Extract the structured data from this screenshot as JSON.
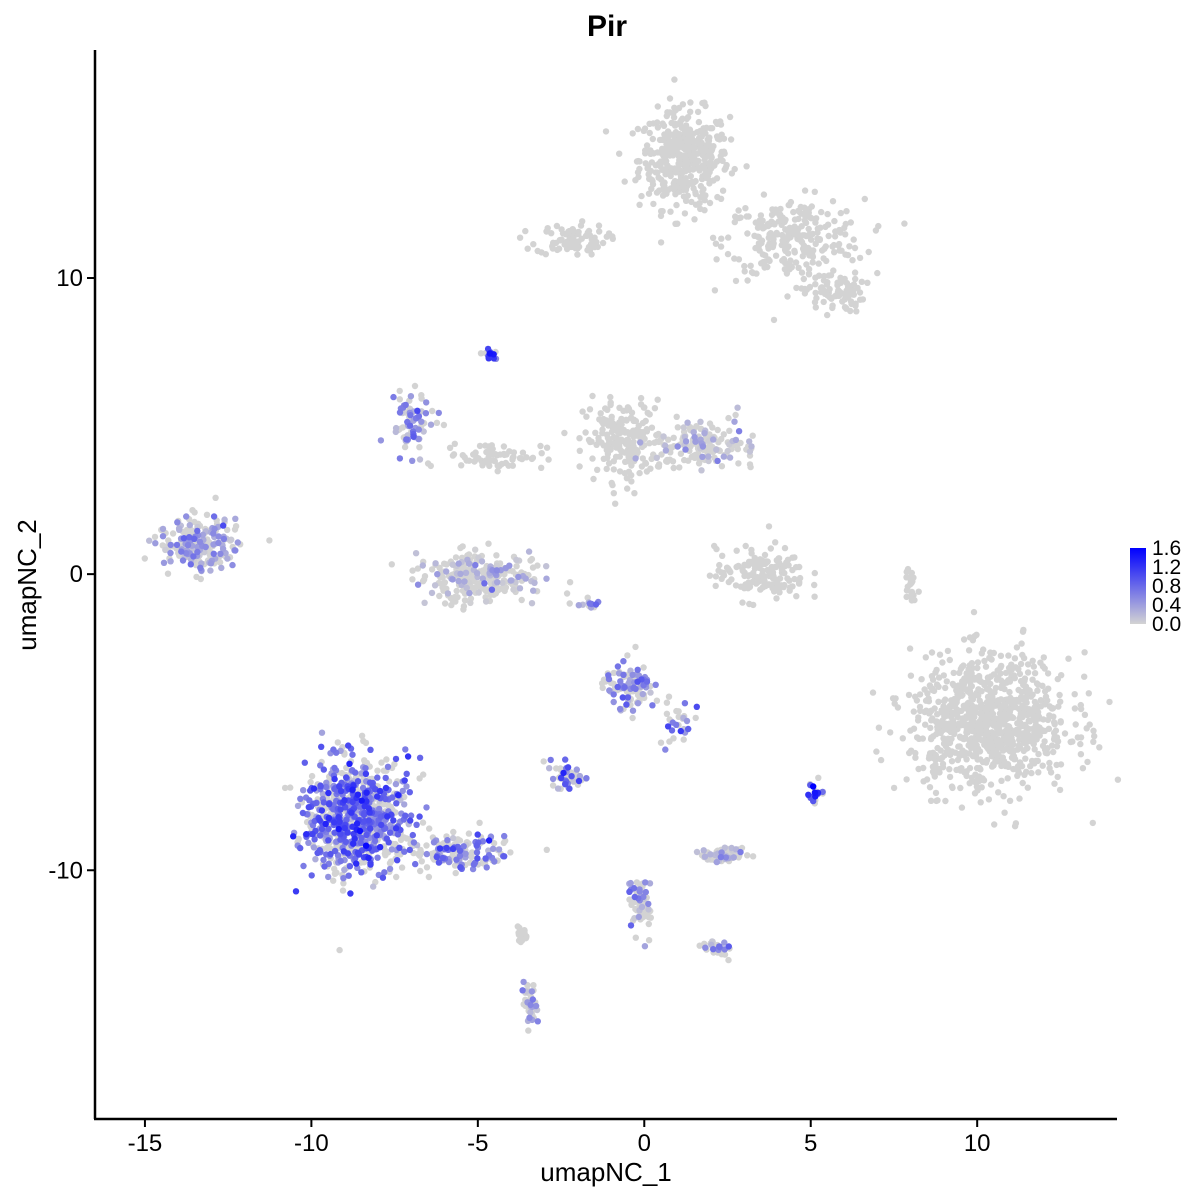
{
  "chart_data": {
    "type": "scatter",
    "title": "Pir",
    "xlabel": "umapNC_1",
    "ylabel": "umapNC_2",
    "xlim": [
      -16.5,
      14.2
    ],
    "ylim": [
      -18.4,
      17.7
    ],
    "xticks": [
      -15,
      -10,
      -5,
      0,
      5,
      10
    ],
    "xtick_labels": [
      "-15",
      "-10",
      "-5",
      "0",
      "5",
      "10"
    ],
    "yticks": [
      -10,
      0,
      10
    ],
    "ytick_labels": [
      "-10",
      "0",
      "10"
    ],
    "grid": false,
    "legend": {
      "position": "right",
      "ticks": [
        "0.0",
        "0.4",
        "0.8",
        "1.2",
        "1.6"
      ],
      "range": [
        0,
        1.6
      ],
      "color_low": "#d3d3d3",
      "color_high": "#0000ff"
    },
    "point_color_low": "#d3d3d3",
    "point_color_high": "#0000ff",
    "clusters": [
      {
        "cx": 1.2,
        "cy": 14.0,
        "sx": 0.9,
        "sy": 1.1,
        "n": 420,
        "expr": 0
      },
      {
        "cx": 4.5,
        "cy": 11.3,
        "sx": 1.4,
        "sy": 0.9,
        "n": 260,
        "expr": 0
      },
      {
        "cx": -2.2,
        "cy": 11.3,
        "sx": 0.7,
        "sy": 0.35,
        "n": 90,
        "expr": 0
      },
      {
        "cx": 5.7,
        "cy": 9.5,
        "sx": 0.6,
        "sy": 0.45,
        "n": 80,
        "expr": 0
      },
      {
        "cx": -0.6,
        "cy": 4.5,
        "sx": 0.8,
        "sy": 0.9,
        "n": 200,
        "expr": 0
      },
      {
        "cx": 1.8,
        "cy": 4.4,
        "sx": 1.1,
        "sy": 0.5,
        "n": 160,
        "expr": 0.02
      },
      {
        "cx": -7.0,
        "cy": 5.0,
        "sx": 0.5,
        "sy": 0.7,
        "n": 70,
        "expr": 0.5
      },
      {
        "cx": -4.5,
        "cy": 4.0,
        "sx": 1.0,
        "sy": 0.3,
        "n": 70,
        "expr": 0
      },
      {
        "cx": -5.0,
        "cy": -0.1,
        "sx": 1.3,
        "sy": 0.55,
        "n": 260,
        "expr": 0.02
      },
      {
        "cx": -13.4,
        "cy": 1.0,
        "sx": 0.8,
        "sy": 0.55,
        "n": 220,
        "expr": 0.3
      },
      {
        "cx": 3.5,
        "cy": 0.0,
        "sx": 0.9,
        "sy": 0.6,
        "n": 150,
        "expr": 0
      },
      {
        "cx": 10.4,
        "cy": -5.0,
        "sx": 1.6,
        "sy": 1.5,
        "n": 900,
        "expr": 0
      },
      {
        "cx": -8.7,
        "cy": -8.2,
        "sx": 1.05,
        "sy": 1.25,
        "n": 820,
        "expr": 0.75
      },
      {
        "cx": -5.6,
        "cy": -9.4,
        "sx": 1.0,
        "sy": 0.35,
        "n": 150,
        "expr": 0.6
      },
      {
        "cx": -0.4,
        "cy": -3.8,
        "sx": 0.5,
        "sy": 0.5,
        "n": 110,
        "expr": 0.45
      },
      {
        "cx": 1.0,
        "cy": -5.0,
        "sx": 0.4,
        "sy": 0.5,
        "n": 30,
        "expr": 0.6
      },
      {
        "cx": -2.4,
        "cy": -6.8,
        "sx": 0.4,
        "sy": 0.3,
        "n": 45,
        "expr": 0.6
      },
      {
        "cx": 2.4,
        "cy": -9.5,
        "sx": 0.45,
        "sy": 0.15,
        "n": 90,
        "expr": 0.02
      },
      {
        "cx": -0.1,
        "cy": -11.2,
        "sx": 0.25,
        "sy": 0.6,
        "n": 60,
        "expr": 0.4
      },
      {
        "cx": 2.2,
        "cy": -12.6,
        "sx": 0.3,
        "sy": 0.25,
        "n": 30,
        "expr": 0.5
      },
      {
        "cx": -3.4,
        "cy": -14.6,
        "sx": 0.15,
        "sy": 0.5,
        "n": 45,
        "expr": 0.2
      },
      {
        "cx": 5.1,
        "cy": -7.4,
        "sx": 0.15,
        "sy": 0.25,
        "n": 22,
        "expr": 1.1
      },
      {
        "cx": -4.6,
        "cy": 7.4,
        "sx": 0.15,
        "sy": 0.15,
        "n": 12,
        "expr": 1.3
      },
      {
        "cx": 8.0,
        "cy": -0.2,
        "sx": 0.12,
        "sy": 0.45,
        "n": 22,
        "expr": 0
      },
      {
        "cx": -3.7,
        "cy": -12.2,
        "sx": 0.08,
        "sy": 0.45,
        "n": 18,
        "expr": 0
      },
      {
        "cx": -1.6,
        "cy": -1.0,
        "sx": 0.4,
        "sy": 0.1,
        "n": 12,
        "expr": 0.4
      }
    ]
  }
}
